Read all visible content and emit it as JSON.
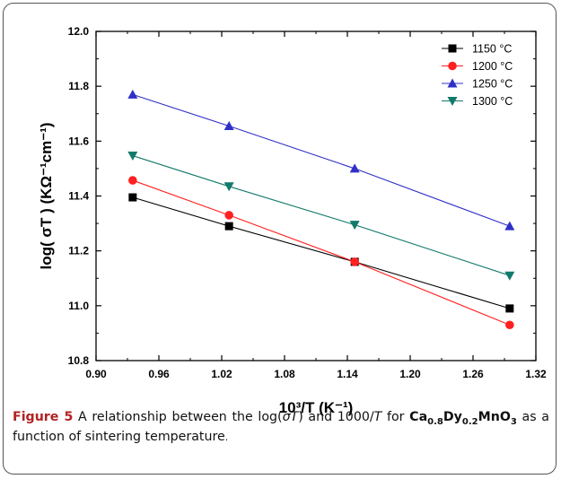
{
  "chart_data": {
    "type": "line",
    "xlabel": "10³/T (K⁻¹)",
    "ylabel": "log( σT ) (KΩ⁻¹cm⁻¹)",
    "xlim": [
      0.9,
      1.32
    ],
    "ylim": [
      10.8,
      12.0
    ],
    "xticks": [
      "0.90",
      "0.96",
      "1.02",
      "1.08",
      "1.14",
      "1.20",
      "1.26",
      "1.32"
    ],
    "yticks": [
      "10.8",
      "11.0",
      "11.2",
      "11.4",
      "11.6",
      "11.8",
      "12.0"
    ],
    "legend_position": "top-right",
    "series": [
      {
        "name": "1150 °C",
        "color": "#000000",
        "marker": "square",
        "x": [
          0.935,
          1.027,
          1.147,
          1.295
        ],
        "y": [
          11.395,
          11.29,
          11.16,
          10.99
        ]
      },
      {
        "name": "1200 °C",
        "color": "#ff2020",
        "marker": "circle",
        "x": [
          0.935,
          1.027,
          1.147,
          1.295
        ],
        "y": [
          11.457,
          11.33,
          11.16,
          10.93
        ]
      },
      {
        "name": "1250 °C",
        "color": "#3030c8",
        "marker": "triangle-up",
        "x": [
          0.935,
          1.027,
          1.147,
          1.295
        ],
        "y": [
          11.77,
          11.655,
          11.5,
          11.29
        ]
      },
      {
        "name": "1300 °C",
        "color": "#127a6a",
        "marker": "triangle-down",
        "x": [
          0.935,
          1.027,
          1.147,
          1.295
        ],
        "y": [
          11.547,
          11.435,
          11.295,
          11.11
        ]
      }
    ]
  },
  "caption": {
    "label": "Figure 5",
    "text_a": "A relationship between the log(",
    "sigma_t": "σT",
    "text_b": ") and 1000/",
    "t": "T",
    "text_c": " for",
    "formula_ca": "Ca",
    "sub1": "0.8",
    "formula_dy": "Dy",
    "sub2": "0.2",
    "formula_mno": "MnO",
    "sub3": "3",
    "text_d": " as a function of sintering temperature",
    "end": "."
  }
}
